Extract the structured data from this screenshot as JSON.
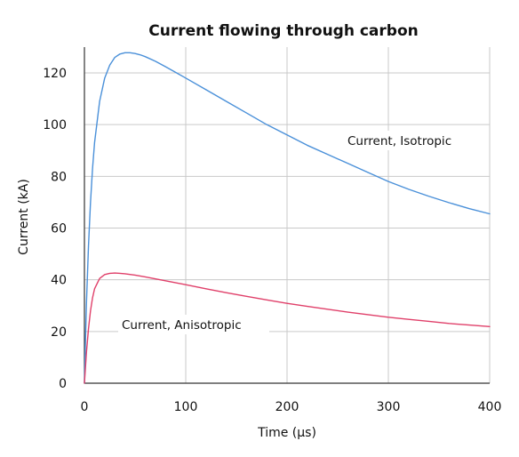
{
  "chart_data": {
    "type": "line",
    "title": "Current flowing through carbon",
    "xlabel": "Time (µs)",
    "ylabel": "Current (kA)",
    "xlim": [
      0,
      400
    ],
    "ylim": [
      0,
      130
    ],
    "x_ticks": [
      0,
      100,
      200,
      300,
      400
    ],
    "y_ticks": [
      0,
      20,
      40,
      60,
      80,
      100,
      120
    ],
    "grid": true,
    "series": [
      {
        "name": "Current, Isotropic",
        "color": "#4a90d9",
        "x": [
          0,
          1,
          2,
          4,
          6,
          8,
          10,
          15,
          20,
          25,
          30,
          35,
          40,
          45,
          50,
          55,
          60,
          70,
          80,
          90,
          100,
          120,
          140,
          160,
          180,
          200,
          220,
          240,
          260,
          280,
          300,
          320,
          340,
          360,
          380,
          400
        ],
        "y": [
          0,
          16,
          31,
          53,
          70,
          83,
          93,
          109,
          118,
          123,
          126,
          127.3,
          127.8,
          127.8,
          127.5,
          127,
          126.3,
          124.5,
          122.4,
          120.2,
          118,
          113.5,
          109,
          104.5,
          100,
          96,
          92,
          88.5,
          85,
          81.5,
          78,
          75,
          72.3,
          69.8,
          67.5,
          65.5
        ]
      },
      {
        "name": "Current, Anisotropic",
        "color": "#e0406a",
        "x": [
          0,
          1,
          2,
          4,
          6,
          8,
          10,
          15,
          20,
          25,
          30,
          35,
          40,
          50,
          60,
          80,
          100,
          120,
          140,
          160,
          180,
          200,
          220,
          240,
          260,
          280,
          300,
          320,
          340,
          360,
          380,
          400
        ],
        "y": [
          0,
          6,
          12,
          21,
          28,
          33,
          36.5,
          40.5,
          42,
          42.5,
          42.6,
          42.5,
          42.3,
          41.8,
          41.1,
          39.6,
          38.1,
          36.5,
          35,
          33.6,
          32.2,
          30.9,
          29.7,
          28.6,
          27.5,
          26.5,
          25.5,
          24.7,
          23.9,
          23.1,
          22.5,
          21.9
        ]
      }
    ],
    "annotations": [
      "Current, Isotropic",
      "Current, Anisotropic"
    ]
  }
}
